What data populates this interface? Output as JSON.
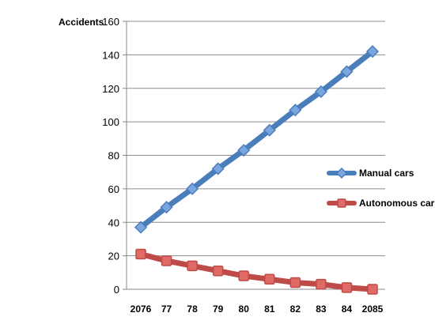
{
  "chart_data": {
    "type": "line",
    "ylabel": "Accidents",
    "xlabel": "",
    "title": "",
    "ylim": [
      0,
      160
    ],
    "yticks": [
      0,
      20,
      40,
      60,
      80,
      100,
      120,
      140,
      160
    ],
    "grid": true,
    "legend_position": "right",
    "categories": [
      "2076",
      "77",
      "78",
      "79",
      "80",
      "81",
      "82",
      "83",
      "84",
      "2085"
    ],
    "series": [
      {
        "name": "Manual cars",
        "color": "#4a7ebb",
        "marker": "diamond",
        "marker_color": "#7aa6e0",
        "values": [
          37,
          49,
          60,
          72,
          83,
          95,
          107,
          118,
          130,
          142
        ]
      },
      {
        "name": "Autonomous cars",
        "color": "#be4b48",
        "marker": "square",
        "marker_color": "#e06a66",
        "values": [
          21,
          17,
          14,
          11,
          8,
          6,
          4,
          3,
          1,
          0
        ]
      }
    ]
  }
}
